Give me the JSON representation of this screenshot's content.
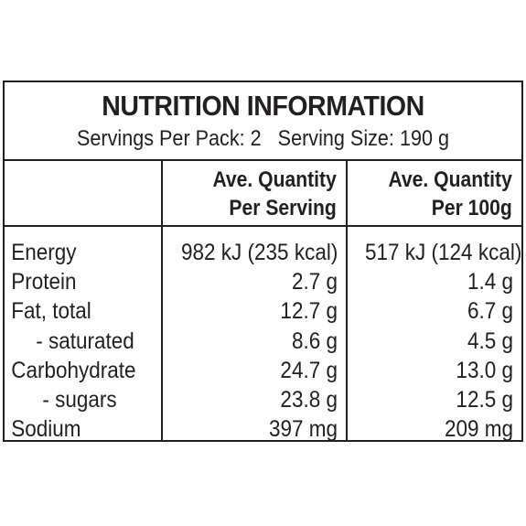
{
  "panel": {
    "title": "NUTRITION INFORMATION",
    "subtitle": "Servings Per Pack: 2   Serving Size: 190 g"
  },
  "columns": {
    "per_serving": [
      "Ave. Quantity",
      "Per Serving"
    ],
    "per_100g": [
      "Ave. Quantity",
      "Per 100g"
    ]
  },
  "rows": [
    {
      "label": "Energy",
      "per_serving": "982 kJ (235 kcal)",
      "per_100g": "517 kJ (124 kcal)"
    },
    {
      "label": "Protein",
      "per_serving": "2.7 g",
      "per_100g": "1.4 g"
    },
    {
      "label": "Fat, total",
      "per_serving": "12.7 g",
      "per_100g": "6.7 g"
    },
    {
      "label": "- saturated",
      "per_serving": "8.6 g",
      "per_100g": "4.5 g"
    },
    {
      "label": "Carbohydrate",
      "per_serving": "24.7 g",
      "per_100g": "13.0 g"
    },
    {
      "label": "- sugars",
      "per_serving": "23.8 g",
      "per_100g": "12.5 g"
    },
    {
      "label": "Sodium",
      "per_serving": "397 mg",
      "per_100g": "209 mg"
    }
  ]
}
